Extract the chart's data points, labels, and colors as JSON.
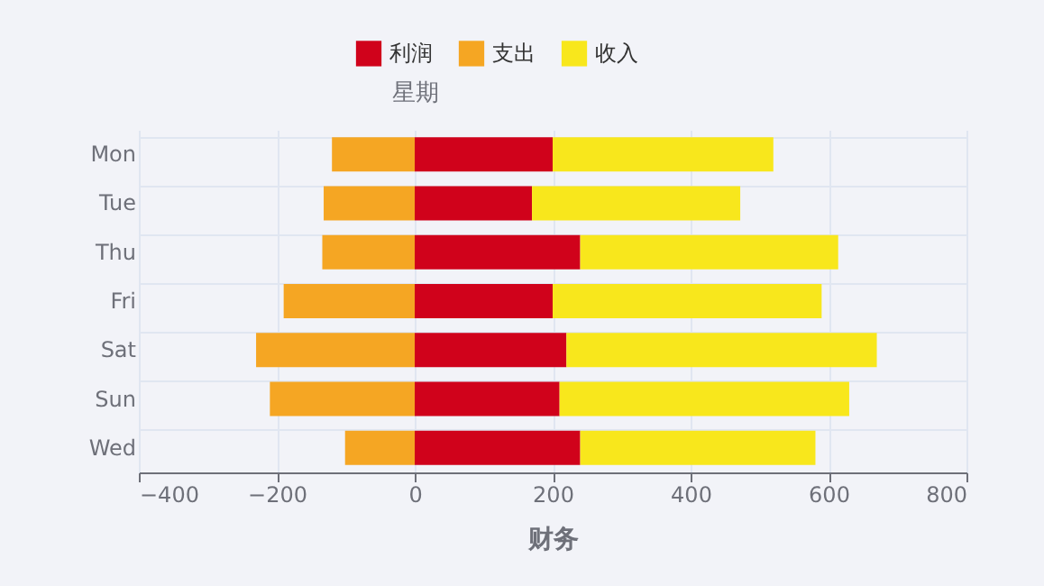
{
  "chart_data": {
    "type": "bar",
    "orientation": "horizontal",
    "stacked": true,
    "xlabel": "财务",
    "ylabel": "星期",
    "categories": [
      "Mon",
      "Tue",
      "Thu",
      "Fri",
      "Sat",
      "Sun",
      "Wed"
    ],
    "series": [
      {
        "name": "利润",
        "color": "#d0021b",
        "values": [
          200,
          170,
          240,
          200,
          220,
          210,
          240
        ]
      },
      {
        "name": "支出",
        "color": "#f5a623",
        "values": [
          -120,
          -132,
          -134,
          -190,
          -230,
          -210,
          -101
        ]
      },
      {
        "name": "收入",
        "color": "#f8e71c",
        "values": [
          320,
          302,
          374,
          390,
          450,
          420,
          341
        ]
      }
    ],
    "xlim": [
      -400,
      800
    ],
    "xticks": [
      -400,
      -200,
      0,
      200,
      400,
      600,
      800
    ],
    "grid": true,
    "legend": "top"
  }
}
